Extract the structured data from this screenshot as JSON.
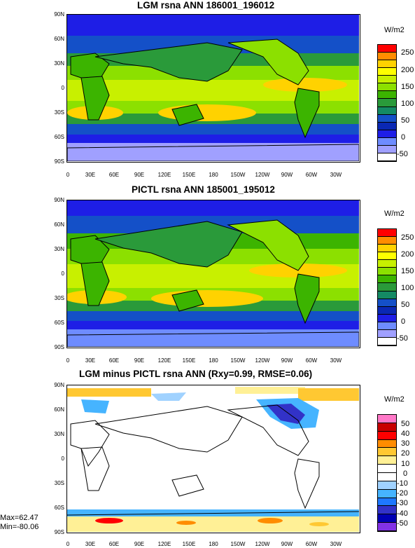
{
  "panels": [
    {
      "title": "LGM rsna ANN 186001_196012",
      "units": "W/m2",
      "colorbar": {
        "labels": [
          "250",
          "200",
          "150",
          "100",
          "50",
          "0",
          "-50"
        ],
        "colors": [
          "#ff0000",
          "#ff8c00",
          "#ffd200",
          "#ffff00",
          "#c8f000",
          "#8ce000",
          "#3cb400",
          "#2a9a3a",
          "#148a64",
          "#1450c8",
          "#0a28b4",
          "#1e1ee6",
          "#6e8cff",
          "#a0a0ff",
          "#ffffff"
        ]
      }
    },
    {
      "title": "PICTL rsna ANN 185001_195012",
      "units": "W/m2",
      "colorbar": {
        "labels": [
          "250",
          "200",
          "150",
          "100",
          "50",
          "0",
          "-50"
        ],
        "colors": [
          "#ff0000",
          "#ff8c00",
          "#ffd200",
          "#ffff00",
          "#c8f000",
          "#8ce000",
          "#3cb400",
          "#2a9a3a",
          "#148a64",
          "#1450c8",
          "#0a28b4",
          "#1e1ee6",
          "#6e8cff",
          "#a0a0ff",
          "#ffffff"
        ]
      }
    },
    {
      "title": "LGM minus PICTL rsna ANN (Rxy=0.99, RMSE=0.06)",
      "units": "W/m2",
      "colorbar": {
        "labels": [
          "50",
          "40",
          "30",
          "20",
          "10",
          "0",
          "-10",
          "-20",
          "-30",
          "-40",
          "-50"
        ],
        "colors": [
          "#ff78c8",
          "#c80000",
          "#ff0000",
          "#ff8c00",
          "#ffc832",
          "#fff096",
          "#ffffff",
          "#ffffff",
          "#a0d2ff",
          "#46b4ff",
          "#1e78ff",
          "#3232c8",
          "#0000b4",
          "#8232e6"
        ]
      },
      "stats": {
        "max": "Max=62.47",
        "min": "Min=-80.06"
      }
    }
  ],
  "lat_ticks": [
    "90N",
    "60N",
    "30N",
    "0",
    "30S",
    "60S",
    "90S"
  ],
  "lon_ticks": [
    "0",
    "30E",
    "60E",
    "90E",
    "120E",
    "150E",
    "180",
    "150W",
    "120W",
    "90W",
    "60W",
    "30W"
  ],
  "chart_data": [
    {
      "type": "heatmap",
      "title": "LGM rsna ANN 186001_196012",
      "xlabel": "",
      "ylabel": "",
      "x_ticks": [
        "0",
        "30E",
        "60E",
        "90E",
        "120E",
        "150E",
        "180",
        "150W",
        "120W",
        "90W",
        "60W",
        "30W"
      ],
      "y_ticks": [
        "90N",
        "60N",
        "30N",
        "0",
        "30S",
        "60S",
        "90S"
      ],
      "colorbar_units": "W/m2",
      "colorbar_levels": [
        -50,
        0,
        50,
        100,
        150,
        200,
        250
      ]
    },
    {
      "type": "heatmap",
      "title": "PICTL rsna ANN 185001_195012",
      "xlabel": "",
      "ylabel": "",
      "x_ticks": [
        "0",
        "30E",
        "60E",
        "90E",
        "120E",
        "150E",
        "180",
        "150W",
        "120W",
        "90W",
        "60W",
        "30W"
      ],
      "y_ticks": [
        "90N",
        "60N",
        "30N",
        "0",
        "30S",
        "60S",
        "90S"
      ],
      "colorbar_units": "W/m2",
      "colorbar_levels": [
        -50,
        0,
        50,
        100,
        150,
        200,
        250
      ]
    },
    {
      "type": "heatmap",
      "title": "LGM minus PICTL rsna ANN (Rxy=0.99, RMSE=0.06)",
      "xlabel": "",
      "ylabel": "",
      "x_ticks": [
        "0",
        "30E",
        "60E",
        "90E",
        "120E",
        "150E",
        "180",
        "150W",
        "120W",
        "90W",
        "60W",
        "30W"
      ],
      "y_ticks": [
        "90N",
        "60N",
        "30N",
        "0",
        "30S",
        "60S",
        "90S"
      ],
      "colorbar_units": "W/m2",
      "colorbar_levels": [
        -50,
        -40,
        -30,
        -20,
        -10,
        0,
        10,
        20,
        30,
        40,
        50
      ],
      "max": 62.47,
      "min": -80.06
    }
  ]
}
